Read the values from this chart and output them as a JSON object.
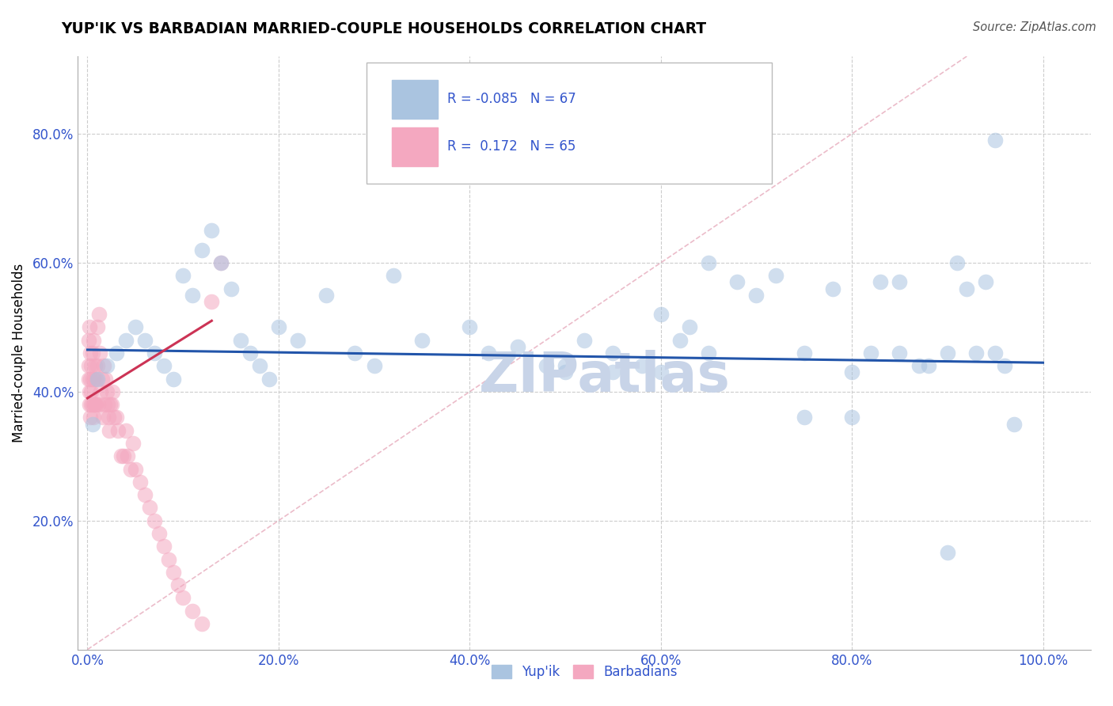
{
  "title": "YUP'IK VS BARBADIAN MARRIED-COUPLE HOUSEHOLDS CORRELATION CHART",
  "source": "Source: ZipAtlas.com",
  "ylabel_label": "Married-couple Households",
  "x_tick_vals": [
    0.0,
    0.2,
    0.4,
    0.6,
    0.8,
    1.0
  ],
  "y_tick_vals": [
    0.2,
    0.4,
    0.6,
    0.8
  ],
  "xlim": [
    -0.01,
    1.05
  ],
  "ylim": [
    0.0,
    0.92
  ],
  "blue_color": "#aac4e0",
  "pink_color": "#f4a8c0",
  "blue_line_color": "#2255aa",
  "pink_line_color": "#cc3355",
  "diagonal_color": "#e8b0c0",
  "watermark": "ZIPatlas",
  "watermark_color": "#c8d4e8",
  "blue_trend_x0": 0.0,
  "blue_trend_y0": 0.465,
  "blue_trend_x1": 1.0,
  "blue_trend_y1": 0.445,
  "pink_trend_x0": 0.0,
  "pink_trend_y0": 0.39,
  "pink_trend_x1": 0.13,
  "pink_trend_y1": 0.51,
  "legend_R_blue": "R = -0.085",
  "legend_N_blue": "N = 67",
  "legend_R_pink": "R =  0.172",
  "legend_N_pink": "N = 65",
  "blue_x": [
    0.005,
    0.01,
    0.02,
    0.03,
    0.04,
    0.05,
    0.06,
    0.07,
    0.08,
    0.09,
    0.1,
    0.11,
    0.12,
    0.13,
    0.14,
    0.15,
    0.16,
    0.17,
    0.18,
    0.19,
    0.2,
    0.22,
    0.25,
    0.28,
    0.3,
    0.32,
    0.35,
    0.4,
    0.42,
    0.45,
    0.48,
    0.5,
    0.52,
    0.55,
    0.58,
    0.6,
    0.62,
    0.63,
    0.65,
    0.65,
    0.68,
    0.7,
    0.72,
    0.75,
    0.78,
    0.8,
    0.82,
    0.83,
    0.85,
    0.85,
    0.87,
    0.88,
    0.9,
    0.91,
    0.92,
    0.93,
    0.94,
    0.95,
    0.96,
    0.97,
    0.5,
    0.55,
    0.6,
    0.75,
    0.8,
    0.9,
    0.95
  ],
  "blue_y": [
    0.35,
    0.42,
    0.44,
    0.46,
    0.48,
    0.5,
    0.48,
    0.46,
    0.44,
    0.42,
    0.58,
    0.55,
    0.62,
    0.65,
    0.6,
    0.56,
    0.48,
    0.46,
    0.44,
    0.42,
    0.5,
    0.48,
    0.55,
    0.46,
    0.44,
    0.58,
    0.48,
    0.5,
    0.46,
    0.47,
    0.44,
    0.44,
    0.48,
    0.46,
    0.44,
    0.52,
    0.48,
    0.5,
    0.46,
    0.6,
    0.57,
    0.55,
    0.58,
    0.46,
    0.56,
    0.43,
    0.46,
    0.57,
    0.46,
    0.57,
    0.44,
    0.44,
    0.46,
    0.6,
    0.56,
    0.46,
    0.57,
    0.46,
    0.44,
    0.35,
    0.43,
    0.43,
    0.43,
    0.36,
    0.36,
    0.15,
    0.79
  ],
  "pink_x": [
    0.001,
    0.001,
    0.001,
    0.002,
    0.002,
    0.002,
    0.003,
    0.003,
    0.003,
    0.004,
    0.004,
    0.004,
    0.005,
    0.005,
    0.005,
    0.006,
    0.006,
    0.007,
    0.007,
    0.008,
    0.008,
    0.009,
    0.009,
    0.01,
    0.01,
    0.011,
    0.012,
    0.013,
    0.014,
    0.015,
    0.016,
    0.017,
    0.018,
    0.019,
    0.02,
    0.021,
    0.022,
    0.023,
    0.024,
    0.025,
    0.026,
    0.028,
    0.03,
    0.032,
    0.035,
    0.038,
    0.04,
    0.042,
    0.045,
    0.048,
    0.05,
    0.055,
    0.06,
    0.065,
    0.07,
    0.075,
    0.08,
    0.085,
    0.09,
    0.095,
    0.1,
    0.11,
    0.12,
    0.13,
    0.14
  ],
  "pink_y": [
    0.42,
    0.44,
    0.48,
    0.38,
    0.4,
    0.5,
    0.36,
    0.42,
    0.46,
    0.38,
    0.4,
    0.44,
    0.38,
    0.42,
    0.46,
    0.36,
    0.48,
    0.38,
    0.42,
    0.38,
    0.44,
    0.38,
    0.42,
    0.5,
    0.44,
    0.38,
    0.52,
    0.46,
    0.4,
    0.42,
    0.36,
    0.44,
    0.38,
    0.42,
    0.4,
    0.38,
    0.36,
    0.34,
    0.38,
    0.38,
    0.4,
    0.36,
    0.36,
    0.34,
    0.3,
    0.3,
    0.34,
    0.3,
    0.28,
    0.32,
    0.28,
    0.26,
    0.24,
    0.22,
    0.2,
    0.18,
    0.16,
    0.14,
    0.12,
    0.1,
    0.08,
    0.06,
    0.04,
    0.54,
    0.6
  ]
}
